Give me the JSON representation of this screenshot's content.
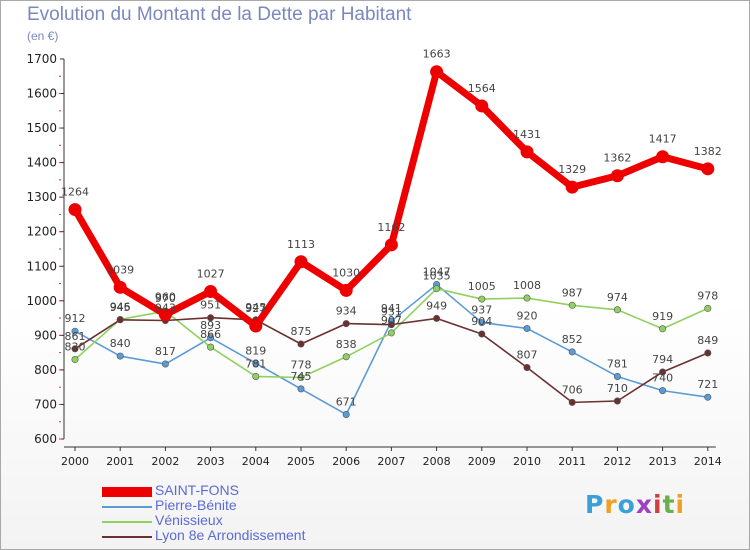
{
  "header": {
    "title": "Evolution du Montant de la Dette par Habitant",
    "unit": "(en €)"
  },
  "logo": {
    "letters": [
      "P",
      "r",
      "o",
      "x",
      "i",
      "t",
      "i"
    ],
    "colors": [
      "#3ca0d8",
      "#f0a020",
      "#3ca0d8",
      "#a040c0",
      "#d04040",
      "#6ab04c",
      "#f0a020"
    ]
  },
  "chart_data": {
    "type": "line",
    "title": "Evolution du Montant de la Dette par Habitant",
    "ylabel": "(en €)",
    "xlabel": "",
    "x": [
      "2000",
      "2001",
      "2002",
      "2003",
      "2004",
      "2005",
      "2006",
      "2007",
      "2008",
      "2009",
      "2010",
      "2011",
      "2012",
      "2013",
      "2014"
    ],
    "ylim": [
      600,
      1700
    ],
    "yticks": [
      "600",
      "700",
      "800",
      "900",
      "1000",
      "1100",
      "1200",
      "1300",
      "1400",
      "1500",
      "1600",
      "1700"
    ],
    "grid": false,
    "legend_position": "bottom-left",
    "series": [
      {
        "name": "Pierre-Bénite",
        "color": "#5b9bd5",
        "values": [
          912,
          840,
          817,
          893,
          819,
          745,
          671,
          941,
          1047,
          937,
          920,
          852,
          781,
          740,
          721
        ],
        "labels": [
          "912",
          "840",
          "817",
          "893",
          "819",
          "745",
          "671",
          "941",
          "1047",
          "937",
          "920",
          "852",
          "781",
          "740",
          "721"
        ]
      },
      {
        "name": "Vénissieux",
        "color": "#90d060",
        "values": [
          830,
          946,
          970,
          866,
          781,
          778,
          838,
          907,
          1035,
          1005,
          1008,
          987,
          974,
          919,
          978
        ],
        "labels": [
          "830",
          "946",
          "970",
          "866",
          "781",
          "778",
          "838",
          "907",
          "1035",
          "1005",
          "1008",
          "987",
          "974",
          "919",
          "978"
        ]
      },
      {
        "name": "Lyon 8e  Arrondissement",
        "color": "#6b3030",
        "values": [
          861,
          945,
          943,
          951,
          945,
          875,
          934,
          931,
          949,
          904,
          807,
          706,
          710,
          794,
          849
        ],
        "labels": [
          "861",
          "945",
          "943",
          "951",
          "945",
          "875",
          "934",
          "931",
          "949",
          "904",
          "807",
          "706",
          "710",
          "794",
          "849"
        ]
      },
      {
        "name": "SAINT-FONS",
        "color": "#ee0000",
        "values": [
          1264,
          1039,
          960,
          1027,
          927,
          1113,
          1030,
          1162,
          1663,
          1564,
          1431,
          1329,
          1362,
          1417,
          1382
        ],
        "labels": [
          "1264",
          "1039",
          "960",
          "1027",
          "927",
          "1113",
          "1030",
          "1162",
          "1663",
          "1564",
          "1431",
          "1329",
          "1362",
          "1417",
          "1382"
        ]
      }
    ]
  },
  "legend": [
    {
      "name": "SAINT-FONS",
      "color": "#ee0000",
      "thickness": 10
    },
    {
      "name": "Pierre-Bénite",
      "color": "#5b9bd5",
      "thickness": 2
    },
    {
      "name": "Vénissieux",
      "color": "#90d060",
      "thickness": 2
    },
    {
      "name": "Lyon 8e  Arrondissement",
      "color": "#6b3030",
      "thickness": 2
    }
  ]
}
